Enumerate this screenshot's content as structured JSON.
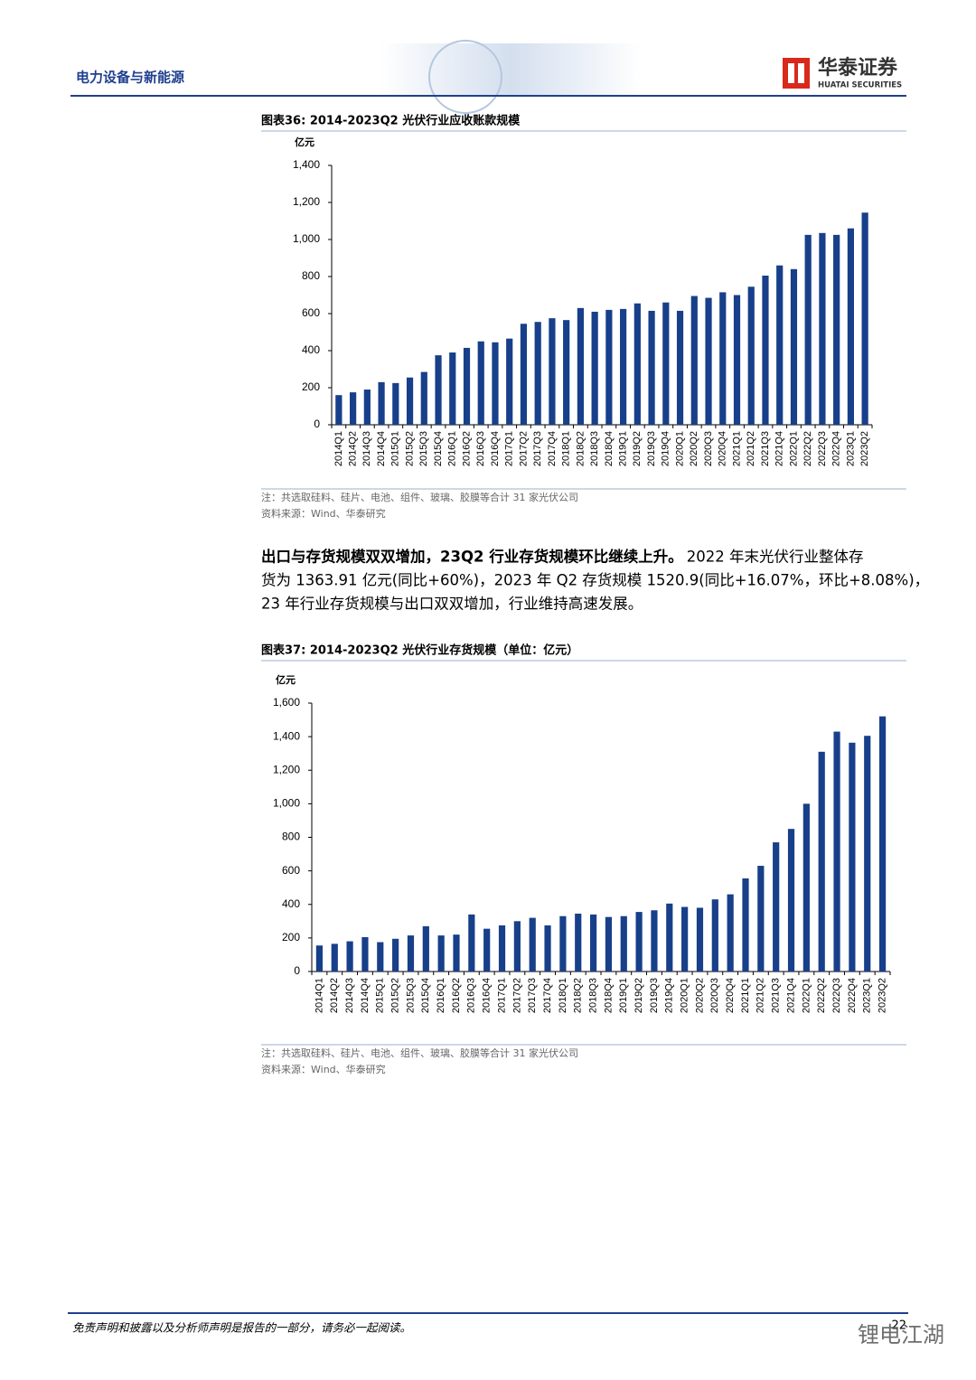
{
  "header": {
    "section": "电力设备与新能源",
    "logo_cn": "华泰证券",
    "logo_en": "HUATAI SECURITIES"
  },
  "chart_data": [
    {
      "type": "bar",
      "title": "图表36:  2014-2023Q2 光伏行业应收账款规模",
      "y_label": "亿元",
      "categories": [
        "2014Q1",
        "2014Q2",
        "2014Q3",
        "2014Q4",
        "2015Q1",
        "2015Q2",
        "2015Q3",
        "2015Q4",
        "2016Q1",
        "2016Q2",
        "2016Q3",
        "2016Q4",
        "2017Q1",
        "2017Q2",
        "2017Q3",
        "2017Q4",
        "2018Q1",
        "2018Q2",
        "2018Q3",
        "2018Q4",
        "2019Q1",
        "2019Q2",
        "2019Q3",
        "2019Q4",
        "2020Q1",
        "2020Q2",
        "2020Q3",
        "2020Q4",
        "2021Q1",
        "2021Q2",
        "2021Q3",
        "2021Q4",
        "2022Q1",
        "2022Q2",
        "2022Q3",
        "2022Q4",
        "2023Q1",
        "2023Q2"
      ],
      "values": [
        160,
        175,
        190,
        230,
        225,
        255,
        285,
        375,
        390,
        415,
        450,
        445,
        465,
        545,
        555,
        575,
        565,
        630,
        610,
        620,
        625,
        655,
        615,
        660,
        615,
        695,
        685,
        715,
        700,
        745,
        805,
        860,
        840,
        1025,
        1035,
        1025,
        1060,
        1145
      ],
      "color": "#173f8a",
      "ylim": [
        0,
        1400
      ],
      "yticks": [
        0,
        200,
        400,
        600,
        800,
        {
          "value": 1000,
          "label": "1,000"
        },
        {
          "value": 1200,
          "label": "1,200"
        },
        {
          "value": 1400,
          "label": "1,400"
        }
      ],
      "note": "注：共选取硅料、硅片、电池、组件、玻璃、胶膜等合计 31 家光伏公司",
      "source": "资料来源：Wind、华泰研究"
    },
    {
      "type": "bar",
      "title": "图表37:  2014-2023Q2 光伏行业存货规模（单位：亿元）",
      "y_label": "亿元",
      "categories": [
        "2014Q1",
        "2014Q2",
        "2014Q3",
        "2014Q4",
        "2015Q1",
        "2015Q2",
        "2015Q3",
        "2015Q4",
        "2016Q1",
        "2016Q2",
        "2016Q3",
        "2016Q4",
        "2017Q1",
        "2017Q2",
        "2017Q3",
        "2017Q4",
        "2018Q1",
        "2018Q2",
        "2018Q3",
        "2018Q4",
        "2019Q1",
        "2019Q2",
        "2019Q3",
        "2019Q4",
        "2020Q1",
        "2020Q2",
        "2020Q3",
        "2020Q4",
        "2021Q1",
        "2021Q2",
        "2021Q3",
        "2021Q4",
        "2022Q1",
        "2022Q2",
        "2022Q3",
        "2022Q4",
        "2023Q1",
        "2023Q2"
      ],
      "values": [
        155,
        165,
        180,
        205,
        175,
        195,
        215,
        270,
        215,
        220,
        340,
        255,
        275,
        300,
        320,
        275,
        330,
        345,
        340,
        325,
        330,
        355,
        365,
        405,
        385,
        380,
        430,
        460,
        555,
        630,
        770,
        850,
        1000,
        1310,
        1430,
        1364,
        1405,
        1520.9
      ],
      "color": "#173f8a",
      "ylim": [
        0,
        1600
      ],
      "yticks": [
        0,
        200,
        400,
        600,
        800,
        {
          "value": 1000,
          "label": "1,000"
        },
        {
          "value": 1200,
          "label": "1,200"
        },
        {
          "value": 1400,
          "label": "1,400"
        },
        {
          "value": 1600,
          "label": "1,600"
        }
      ],
      "note": "注：共选取硅料、硅片、电池、组件、玻璃、胶膜等合计 31 家光伏公司",
      "source": "资料来源：Wind、华泰研究"
    }
  ],
  "paragraph": {
    "lead": "出口与存货规模双双增加，23Q2 行业存货规模环比继续上升。",
    "lines": [
      "2022 年末光伏行业整体存",
      "货为 1363.91 亿元(同比+60%)，2023 年 Q2 存货规模 1520.9(同比+16.07%，环比+8.08%)，",
      "23 年行业存货规模与出口双双增加，行业维持高速发展。"
    ]
  },
  "footer": {
    "disclaimer": "免责声明和披露以及分析师声明是报告的一部分，请务必一起阅读。",
    "page": "22",
    "watermark": "锂电江湖"
  }
}
